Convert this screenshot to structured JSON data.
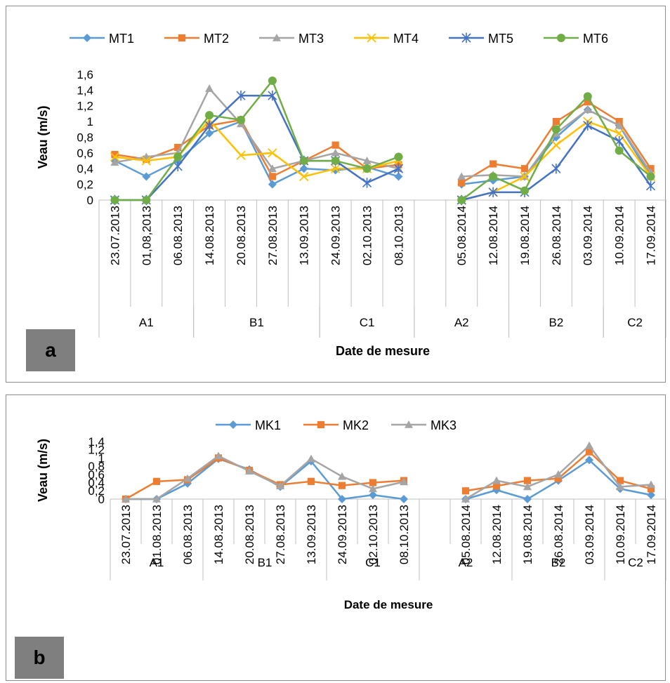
{
  "chart_data": [
    {
      "id": "a",
      "type": "line",
      "panel_label": "a",
      "ylabel": "Veau (m/s)",
      "xlabel": "Date de mesure",
      "ylim": [
        0,
        1.6
      ],
      "yticks": [
        "0",
        "0,2",
        "0,4",
        "0,6",
        "0,8",
        "1",
        "1,2",
        "1,4",
        "1,6"
      ],
      "categories": [
        "23.07.2013",
        "01,08,2013",
        "06.08.2013",
        "14.08.2013",
        "20.08.2013",
        "27.08.2013",
        "13.09.2013",
        "24.09.2013",
        "02.10.2013",
        "08.10.2013",
        "",
        "05.08.2014",
        "12.08.2014",
        "19.08.2014",
        "26.08.2014",
        "03.09.2014",
        "10.09.2014",
        "17.09.2014"
      ],
      "groups": [
        {
          "label": "A1",
          "start": 0,
          "end": 2
        },
        {
          "label": "B1",
          "start": 3,
          "end": 6
        },
        {
          "label": "C1",
          "start": 7,
          "end": 9
        },
        {
          "label": "A2",
          "start": 10,
          "end": 12
        },
        {
          "label": "B2",
          "start": 13,
          "end": 15
        },
        {
          "label": "C2",
          "start": 16,
          "end": 17
        }
      ],
      "legend_position": "top",
      "series": [
        {
          "name": "MT1",
          "color": "#5b9bd5",
          "marker": "diamond",
          "values": [
            0.5,
            0.3,
            0.5,
            0.85,
            1.0,
            0.2,
            0.4,
            0.38,
            0.42,
            0.3,
            null,
            0.2,
            0.25,
            0.3,
            0.8,
            1.15,
            0.95,
            0.3
          ]
        },
        {
          "name": "MT2",
          "color": "#ed7d31",
          "marker": "square",
          "values": [
            0.58,
            0.52,
            0.67,
            0.95,
            1.02,
            0.3,
            0.5,
            0.7,
            0.4,
            0.45,
            null,
            0.22,
            0.46,
            0.4,
            1.0,
            1.25,
            1.0,
            0.4
          ]
        },
        {
          "name": "MT3",
          "color": "#a5a5a5",
          "marker": "triangle",
          "values": [
            0.48,
            0.55,
            0.6,
            1.42,
            0.97,
            0.4,
            0.5,
            0.6,
            0.5,
            0.4,
            null,
            0.3,
            0.32,
            0.3,
            0.85,
            1.15,
            0.95,
            0.35
          ]
        },
        {
          "name": "MT4",
          "color": "#ffc000",
          "marker": "x",
          "values": [
            0.55,
            0.5,
            0.55,
            1.02,
            0.57,
            0.6,
            0.3,
            0.4,
            0.4,
            0.5,
            null,
            0.0,
            0.1,
            0.3,
            0.7,
            1.0,
            0.85,
            0.3
          ]
        },
        {
          "name": "MT5",
          "color": "#4472c4",
          "marker": "star",
          "values": [
            0.0,
            0.0,
            0.43,
            0.95,
            1.33,
            1.33,
            0.5,
            0.5,
            0.22,
            0.4,
            null,
            0.0,
            0.1,
            0.1,
            0.4,
            0.95,
            0.75,
            0.18
          ]
        },
        {
          "name": "MT6",
          "color": "#70ad47",
          "marker": "circle",
          "values": [
            0.0,
            0.0,
            0.55,
            1.08,
            1.02,
            1.52,
            0.5,
            0.5,
            0.4,
            0.55,
            null,
            0.0,
            0.3,
            0.12,
            0.9,
            1.32,
            0.63,
            0.3
          ]
        }
      ]
    },
    {
      "id": "b",
      "type": "line",
      "panel_label": "b",
      "ylabel": "Veau (m/s)",
      "xlabel": "Date de mesure",
      "ylim": [
        0,
        1.4
      ],
      "yticks": [
        "0",
        "0,2",
        "0,4",
        "0,6",
        "0,8",
        "1",
        "1,2",
        "1,4"
      ],
      "categories": [
        "23.07.2013",
        "01.08.2013",
        "06.08.2013",
        "14.08.2013",
        "20.08.2013",
        "27.08.2013",
        "13.09.2013",
        "24.09.2013",
        "02.10.2013",
        "08.10.2013",
        "",
        "05.08.2014",
        "12.08.2014",
        "19.08.2014",
        "26.08.2014",
        "03.09.2014",
        "10.09.2014",
        "17.09.2014"
      ],
      "groups": [
        {
          "label": "A1",
          "start": 0,
          "end": 2
        },
        {
          "label": "B1",
          "start": 3,
          "end": 6
        },
        {
          "label": "C1",
          "start": 7,
          "end": 9
        },
        {
          "label": "A2",
          "start": 10,
          "end": 12
        },
        {
          "label": "B2",
          "start": 13,
          "end": 15
        },
        {
          "label": "C2",
          "start": 16,
          "end": 17
        }
      ],
      "legend_position": "top",
      "series": [
        {
          "name": "MK1",
          "color": "#5b9bd5",
          "marker": "diamond",
          "values": [
            0.0,
            0.0,
            0.38,
            0.98,
            0.72,
            0.3,
            0.92,
            0.0,
            0.1,
            0.0,
            null,
            0.0,
            0.22,
            0.0,
            0.45,
            0.95,
            0.25,
            0.1
          ]
        },
        {
          "name": "MK2",
          "color": "#ed7d31",
          "marker": "square",
          "values": [
            0.0,
            0.43,
            0.47,
            1.0,
            0.7,
            0.35,
            0.43,
            0.33,
            0.4,
            0.45,
            null,
            0.2,
            0.32,
            0.45,
            0.5,
            1.15,
            0.45,
            0.25
          ]
        },
        {
          "name": "MK3",
          "color": "#a5a5a5",
          "marker": "triangle",
          "values": [
            0.0,
            0.0,
            0.5,
            1.05,
            0.68,
            0.32,
            0.98,
            0.55,
            0.25,
            0.42,
            null,
            0.0,
            0.45,
            0.3,
            0.6,
            1.3,
            0.3,
            0.35
          ]
        }
      ]
    }
  ]
}
